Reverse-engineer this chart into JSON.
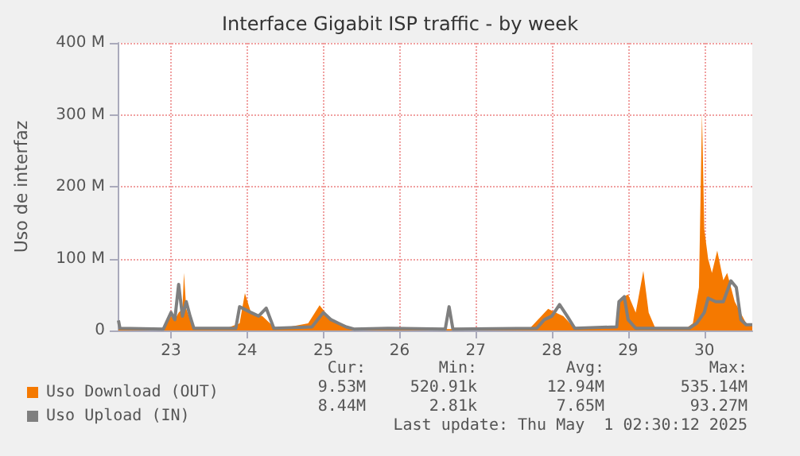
{
  "chart_data": {
    "type": "area",
    "title": "Interface Gigabit ISP traffic - by week",
    "ylabel": "Uso de interfaz",
    "xlim": [
      22.3,
      30.63
    ],
    "xticks": [
      23,
      24,
      25,
      26,
      27,
      28,
      29,
      30
    ],
    "ylim": [
      0,
      400
    ],
    "yticks": [
      0,
      {
        "value": 100,
        "label": "100 M"
      },
      {
        "value": 200,
        "label": "200 M"
      },
      {
        "value": 300,
        "label": "300 M"
      },
      {
        "value": 400,
        "label": "400 M"
      }
    ],
    "grid": true,
    "legend": "bottom left",
    "series": [
      {
        "name": "Uso Download (OUT)",
        "color": "#f57900",
        "x": [
          22.31,
          22.9,
          23.0,
          23.05,
          23.1,
          23.15,
          23.17,
          23.2,
          23.25,
          23.3,
          23.7,
          23.9,
          23.97,
          24.05,
          24.2,
          24.3,
          24.4,
          24.8,
          24.95,
          25.1,
          25.2,
          25.3,
          25.4,
          26.0,
          27.7,
          27.86,
          27.95,
          28.05,
          28.15,
          28.3,
          28.85,
          28.9,
          29.0,
          29.1,
          29.2,
          29.27,
          29.35,
          29.45,
          29.75,
          29.85,
          29.93,
          29.97,
          30.0,
          30.05,
          30.1,
          30.17,
          30.25,
          30.3,
          30.4,
          30.5,
          30.55,
          30.63
        ],
        "values": [
          2,
          2,
          20,
          15,
          25,
          30,
          80,
          30,
          15,
          3,
          2,
          10,
          52,
          25,
          20,
          10,
          2,
          10,
          35,
          15,
          10,
          5,
          2,
          2,
          2,
          20,
          30,
          25,
          20,
          3,
          5,
          45,
          50,
          25,
          83,
          25,
          5,
          2,
          2,
          10,
          60,
          302,
          141,
          100,
          80,
          111,
          70,
          80,
          40,
          20,
          10,
          8
        ]
      },
      {
        "name": "Uso Upload (IN)",
        "color": "#7f7f7f",
        "type": "line",
        "x": [
          22.31,
          22.33,
          22.9,
          23.0,
          23.05,
          23.1,
          23.15,
          23.2,
          23.25,
          23.3,
          23.85,
          23.9,
          24.05,
          24.15,
          24.25,
          24.35,
          24.85,
          25.0,
          25.1,
          25.2,
          25.3,
          25.4,
          25.85,
          26.6,
          26.65,
          26.7,
          27.8,
          27.9,
          28.0,
          28.1,
          28.2,
          28.3,
          28.85,
          28.88,
          28.95,
          29.0,
          29.1,
          29.8,
          29.9,
          30.0,
          30.05,
          30.15,
          30.25,
          30.35,
          30.42,
          30.48,
          30.55,
          30.63
        ],
        "values": [
          14,
          3,
          2,
          25,
          15,
          64,
          20,
          40,
          20,
          3,
          3,
          33,
          25,
          20,
          31,
          3,
          5,
          25,
          15,
          10,
          5,
          2,
          3,
          2,
          33,
          2,
          3,
          15,
          20,
          36,
          20,
          3,
          5,
          40,
          47,
          15,
          3,
          3,
          10,
          25,
          45,
          40,
          40,
          69,
          60,
          15,
          8,
          8
        ]
      }
    ],
    "annotations": [
      "Cur:",
      "Min:",
      "Avg:",
      "Max:",
      "9.53M",
      "520.91k",
      "12.94M",
      "535.14M",
      "8.44M",
      "2.81k",
      "7.65M",
      "93.27M",
      "Last update: Thu May  1 02:30:12 2025"
    ]
  }
}
